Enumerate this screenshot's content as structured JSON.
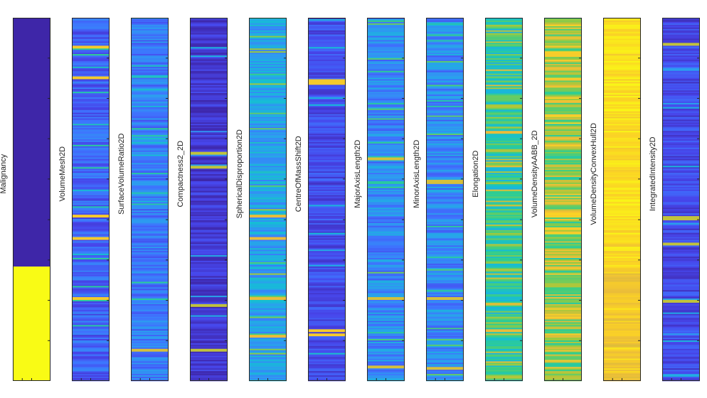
{
  "chart_data": {
    "type": "heatmap",
    "title": "",
    "xlabel": "",
    "ylabel": "",
    "colormap": [
      "#3e26a8",
      "#4746eb",
      "#3e74fe",
      "#2c9def",
      "#16bcd6",
      "#2fce8f",
      "#9bca3c",
      "#eabc3a",
      "#fbd225",
      "#f9fb15"
    ],
    "columns": [
      {
        "name": "Malignancy",
        "kind": "binary",
        "split_fraction": 0.685,
        "low_value": 0.0,
        "high_value": 1.0
      },
      {
        "name": "VolumeMesh2D",
        "kind": "texture",
        "base": 0.18,
        "spread": 0.1,
        "hi_rate": 0.05,
        "hi_level": 0.45,
        "max": 0.85,
        "peaks": [
          0.08,
          0.165,
          0.545,
          0.605,
          0.77
        ]
      },
      {
        "name": "SurfaceVolumeRatio2D",
        "kind": "texture",
        "base": 0.24,
        "spread": 0.1,
        "hi_rate": 0.06,
        "hi_level": 0.42,
        "max": 0.75,
        "peaks": [
          0.915
        ]
      },
      {
        "name": "Compactness2_2D",
        "kind": "texture",
        "base": 0.07,
        "spread": 0.07,
        "hi_rate": 0.04,
        "hi_level": 0.3,
        "max": 0.72,
        "peaks": [
          0.37,
          0.41,
          0.79,
          0.915
        ]
      },
      {
        "name": "SphericalDisproportion2D",
        "kind": "texture",
        "base": 0.36,
        "spread": 0.12,
        "hi_rate": 0.1,
        "hi_level": 0.56,
        "max": 0.78,
        "peaks": [
          0.545,
          0.605,
          0.77,
          0.875
        ]
      },
      {
        "name": "CentreOfMassShift2D",
        "kind": "texture",
        "base": 0.13,
        "spread": 0.08,
        "hi_rate": 0.04,
        "hi_level": 0.35,
        "max": 0.85,
        "peaks": [
          0.17,
          0.18,
          0.86,
          0.87
        ]
      },
      {
        "name": "MajorAxisLength2D",
        "kind": "texture",
        "base": 0.28,
        "spread": 0.12,
        "hi_rate": 0.08,
        "hi_level": 0.5,
        "max": 0.75,
        "peaks": [
          0.385,
          0.77,
          0.96
        ]
      },
      {
        "name": "MinorAxisLength2D",
        "kind": "texture",
        "base": 0.28,
        "spread": 0.12,
        "hi_rate": 0.08,
        "hi_level": 0.5,
        "max": 0.75,
        "peaks": [
          0.45,
          0.77,
          0.965
        ]
      },
      {
        "name": "Elongation2D",
        "kind": "texture",
        "base": 0.52,
        "spread": 0.12,
        "hi_rate": 0.12,
        "hi_level": 0.66,
        "max": 0.78,
        "peaks": [
          0.315,
          0.86
        ]
      },
      {
        "name": "VolumeDensityAABB_2D",
        "kind": "texture",
        "base": 0.64,
        "spread": 0.12,
        "hi_rate": 0.18,
        "hi_level": 0.78,
        "max": 0.86,
        "peaks": [
          0.1,
          0.58
        ]
      },
      {
        "name": "VolumeDensityConvexHull2D",
        "kind": "texture",
        "base": 0.93,
        "spread": 0.06,
        "hi_rate": 0.25,
        "hi_level": 0.83,
        "max": 1.0,
        "peaks": [],
        "lower_shift": {
          "from": 0.685,
          "base": 0.82
        }
      },
      {
        "name": "IntegratedIntensity2D",
        "kind": "texture",
        "base": 0.12,
        "spread": 0.08,
        "hi_rate": 0.04,
        "hi_level": 0.32,
        "max": 0.72,
        "peaks": [
          0.07,
          0.55,
          0.62,
          0.78
        ]
      }
    ],
    "rows": 260,
    "grid": false,
    "legend": "none"
  }
}
